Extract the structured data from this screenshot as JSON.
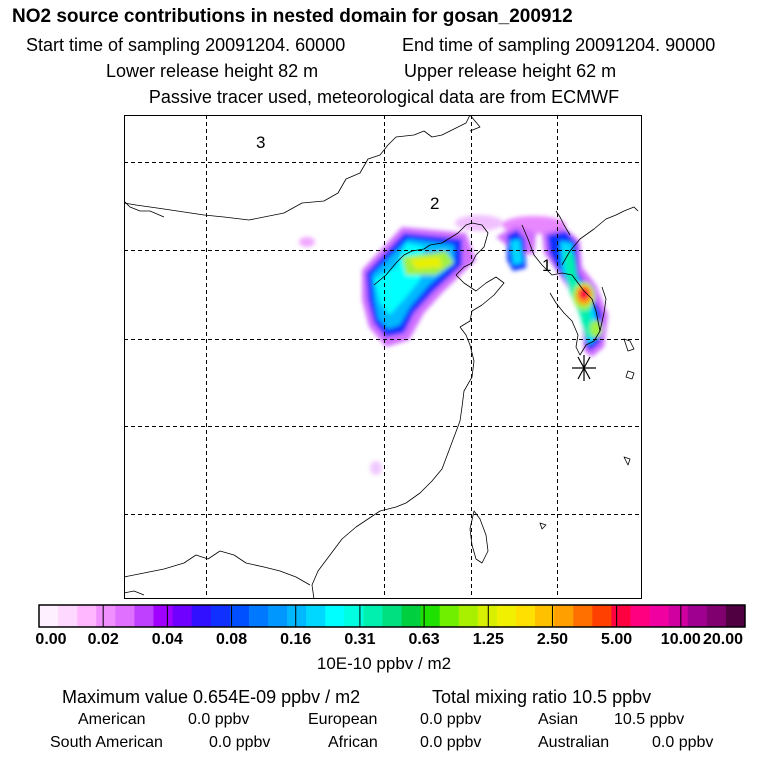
{
  "title": "NO2 source contributions in nested domain for gosan_200912",
  "header": {
    "start": "Start time of sampling 20091204. 60000",
    "end": "End time of sampling 20091204. 90000",
    "lower": "Lower release height   82 m",
    "upper": "Upper release height   62 m",
    "note": "Passive tracer used, meteorological data are from ECMWF"
  },
  "map": {
    "region_labels": [
      "3",
      "2",
      "1"
    ],
    "marker": "asterisk-receptor-icon"
  },
  "colorbar": {
    "tick_labels": [
      "0.00",
      "0.02",
      "0.04",
      "0.08",
      "0.16",
      "0.31",
      "0.63",
      "1.25",
      "2.50",
      "5.00",
      "10.00",
      "20.00"
    ],
    "colors": [
      "#fff0ff",
      "#ffd8ff",
      "#ffb8ff",
      "#f090ff",
      "#e070ff",
      "#c040ff",
      "#a000ff",
      "#7000ff",
      "#3010ff",
      "#1030ff",
      "#0050ff",
      "#0078ff",
      "#0098ff",
      "#00b8ff",
      "#00d8ff",
      "#00ffff",
      "#00ffe0",
      "#00f0b0",
      "#00e080",
      "#00d040",
      "#20e000",
      "#70f000",
      "#a8f000",
      "#d8f000",
      "#f0f000",
      "#ffe000",
      "#ffc000",
      "#ffa000",
      "#ff7000",
      "#ff4000",
      "#ff0040",
      "#ff0080",
      "#f000a0",
      "#d000a0",
      "#a00090",
      "#800070",
      "#500040"
    ],
    "units": "10E-10 ppbv / m2"
  },
  "summary": {
    "max_value": "Maximum value  0.654E-09 ppbv / m2",
    "total": "Total mixing ratio       10.5 ppbv",
    "american_label": "American",
    "american_value": "0.0 ppbv",
    "european_label": "European",
    "european_value": "0.0 ppbv",
    "asian_label": "Asian",
    "asian_value": "10.5 ppbv",
    "south_american_label": "South American",
    "south_american_value": "0.0 ppbv",
    "african_label": "African",
    "african_value": "0.0 ppbv",
    "australian_label": "Australian",
    "australian_value": "0.0 ppbv"
  }
}
